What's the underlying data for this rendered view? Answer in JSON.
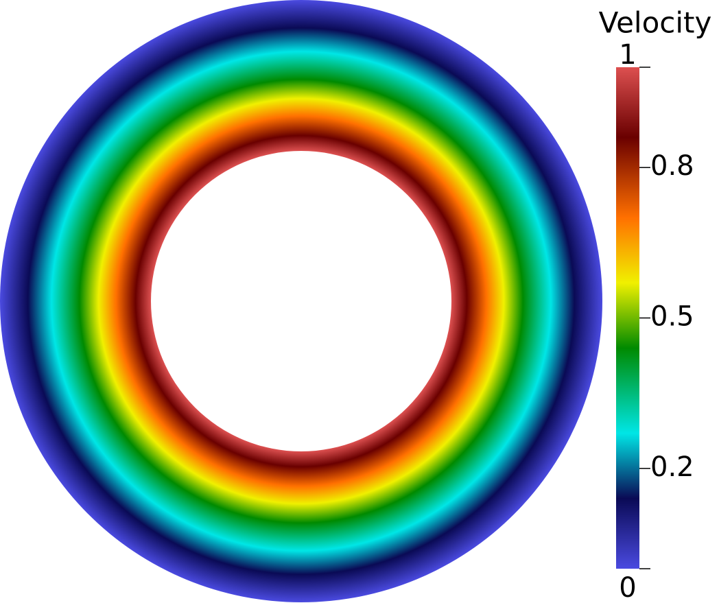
{
  "chart_data": {
    "type": "annulus",
    "colorbar": {
      "title": "Velocity",
      "lim": [
        0,
        1
      ],
      "ticks": [
        0,
        0.2,
        0.5,
        0.8,
        1
      ]
    },
    "colormap": [
      {
        "value": 0,
        "color": "#4a4ae0"
      },
      {
        "value": 0.14,
        "color": "#0a0a55"
      },
      {
        "value": 0.27,
        "color": "#00e6e6"
      },
      {
        "value": 0.44,
        "color": "#008a00"
      },
      {
        "value": 0.57,
        "color": "#f0f000"
      },
      {
        "value": 0.7,
        "color": "#ff7000"
      },
      {
        "value": 0.86,
        "color": "#6a0000"
      },
      {
        "value": 1,
        "color": "#dd5050"
      }
    ]
  }
}
